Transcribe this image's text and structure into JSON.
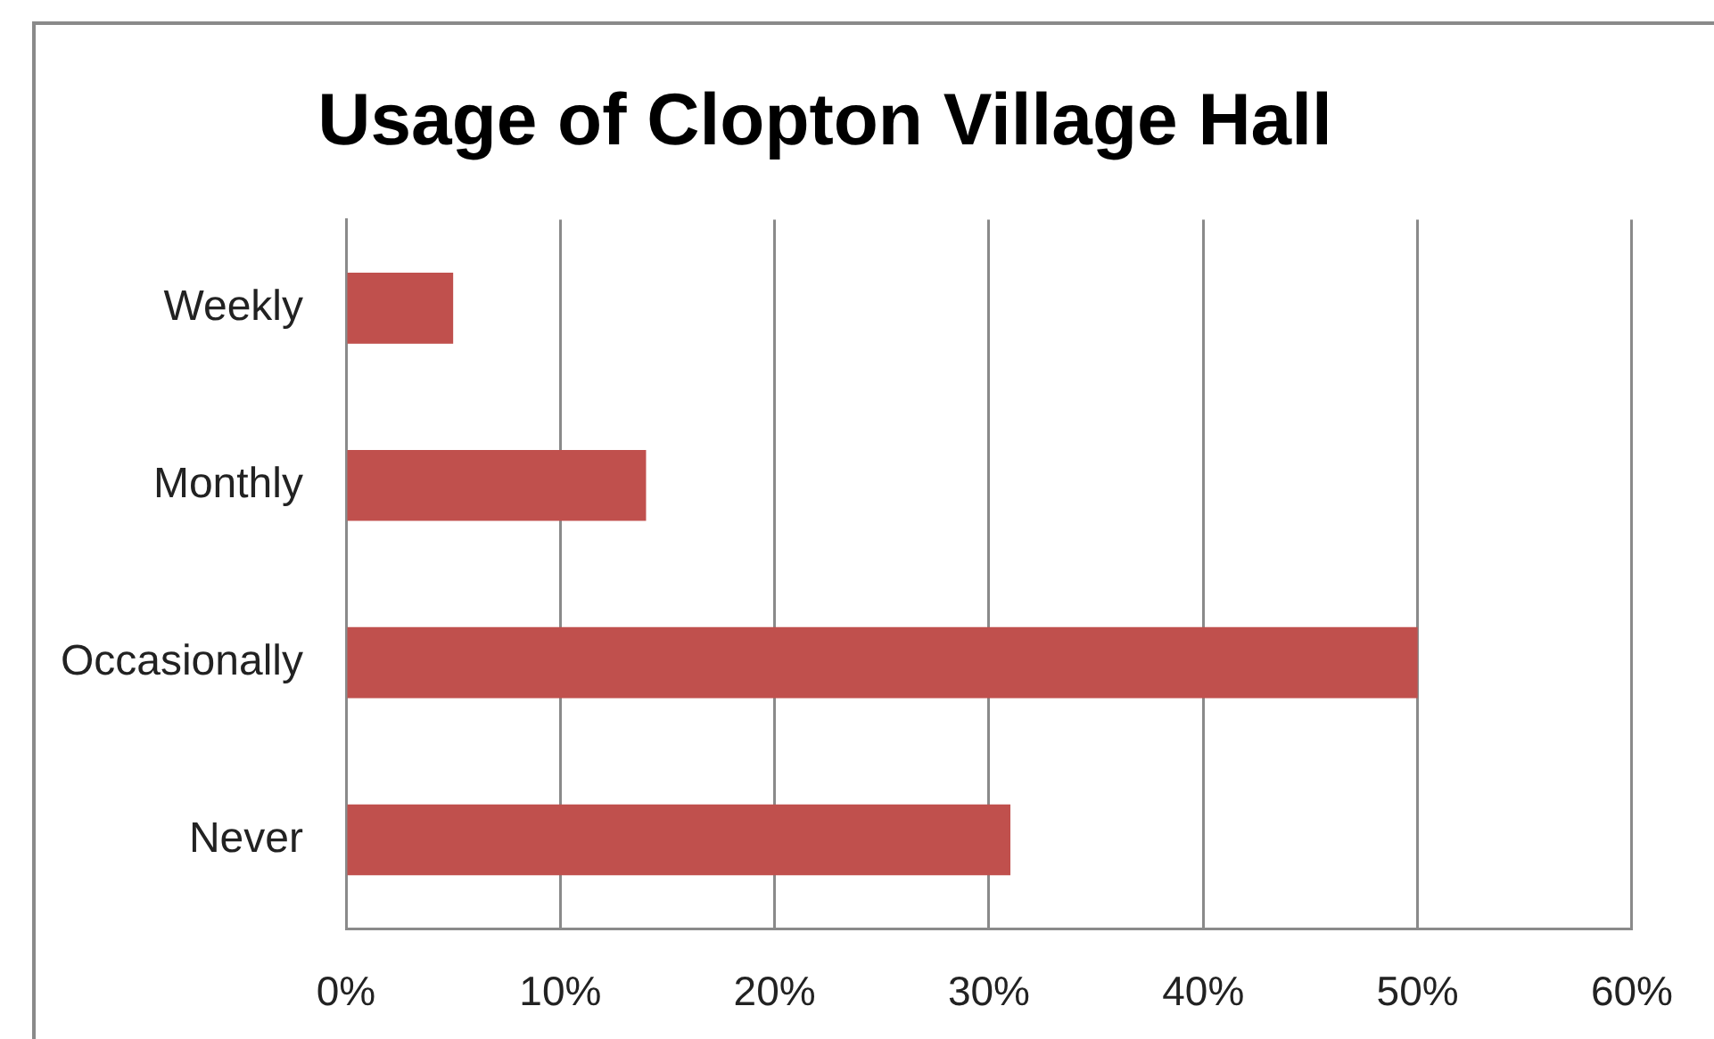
{
  "chart_data": {
    "type": "bar",
    "orientation": "horizontal",
    "title": "Usage of Clopton Village Hall",
    "categories": [
      "Weekly",
      "Monthly",
      "Occasionally",
      "Never"
    ],
    "values": [
      5,
      14,
      50,
      31
    ],
    "color": "#c0504d",
    "xlim": [
      0,
      60
    ],
    "xticks": [
      {
        "value": 0,
        "label": "0%"
      },
      {
        "value": 10,
        "label": "10%"
      },
      {
        "value": 20,
        "label": "20%"
      },
      {
        "value": 30,
        "label": "30%"
      },
      {
        "value": 40,
        "label": "40%"
      },
      {
        "value": 50,
        "label": "50%"
      },
      {
        "value": 60,
        "label": "60%"
      }
    ],
    "grid": "x"
  }
}
